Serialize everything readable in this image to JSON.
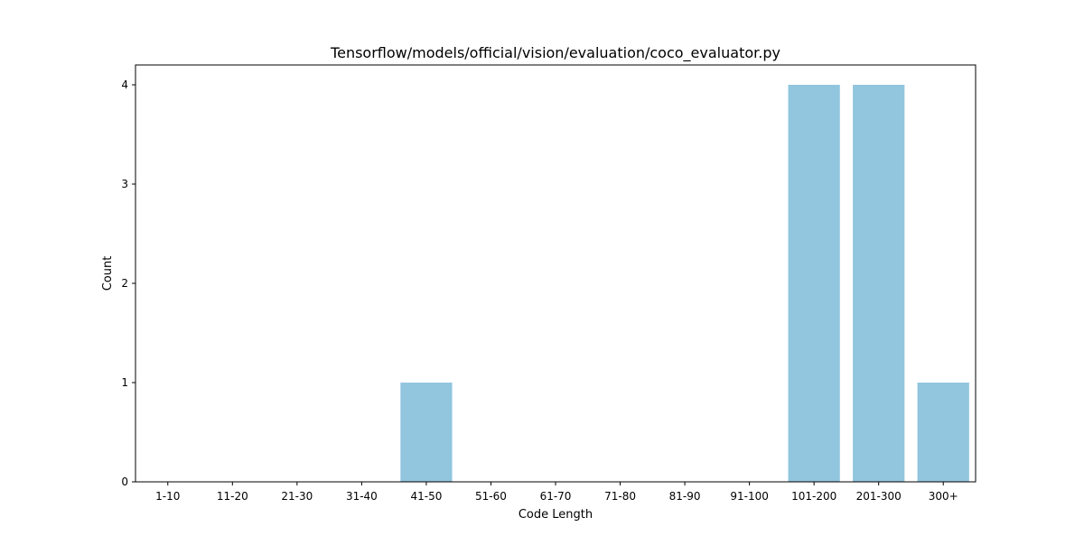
{
  "chart_data": {
    "type": "bar",
    "title": "Tensorflow/models/official/vision/evaluation/coco_evaluator.py",
    "xlabel": "Code Length",
    "ylabel": "Count",
    "categories": [
      "1-10",
      "11-20",
      "21-30",
      "31-40",
      "41-50",
      "51-60",
      "61-70",
      "71-80",
      "81-90",
      "91-100",
      "101-200",
      "201-300",
      "300+"
    ],
    "values": [
      0,
      0,
      0,
      0,
      1,
      0,
      0,
      0,
      0,
      0,
      4,
      4,
      1
    ],
    "ylim": [
      0,
      4.2
    ],
    "yticks": [
      0,
      1,
      2,
      3,
      4
    ],
    "grid": false,
    "legend": "none",
    "bar_color": "#92c5de"
  }
}
